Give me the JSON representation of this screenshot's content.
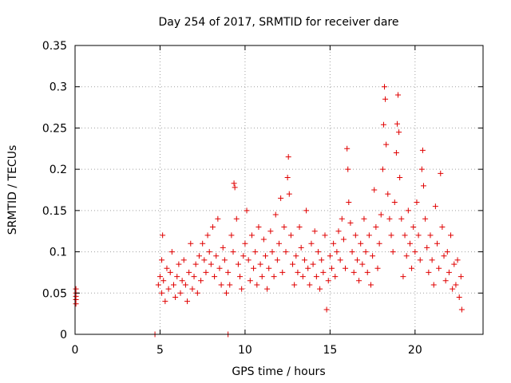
{
  "chart_data": {
    "type": "scatter",
    "title": "Day 254 of 2017, SRMTID for receiver dare",
    "xlabel": "GPS time / hours",
    "ylabel": "SRMTID / TECUs",
    "xlim": [
      0,
      24
    ],
    "ylim": [
      0,
      0.35
    ],
    "x_ticks": [
      0,
      5,
      10,
      15,
      20
    ],
    "x_tick_labels": [
      "0",
      "5",
      "10",
      "15",
      "20"
    ],
    "y_ticks": [
      0,
      0.05,
      0.1,
      0.15,
      0.2,
      0.25,
      0.3,
      0.35
    ],
    "y_tick_labels": [
      "0",
      "0.05",
      "0.1",
      "0.15",
      "0.2",
      "0.25",
      "0.3",
      "0.35"
    ],
    "grid": true,
    "marker": "+",
    "colors": {
      "series": "#e00000",
      "grid": "#a0a0a0",
      "axis": "#000000"
    },
    "series": [
      {
        "name": "SRMTID",
        "points": [
          [
            0.05,
            0.037
          ],
          [
            0.05,
            0.042
          ],
          [
            0.05,
            0.046
          ],
          [
            0.05,
            0.05
          ],
          [
            0.05,
            0.055
          ],
          [
            4.7,
            0.0
          ],
          [
            9.0,
            0.0
          ],
          [
            4.9,
            0.06
          ],
          [
            5.0,
            0.07
          ],
          [
            5.1,
            0.05
          ],
          [
            5.1,
            0.09
          ],
          [
            5.15,
            0.12
          ],
          [
            5.2,
            0.065
          ],
          [
            5.3,
            0.04
          ],
          [
            5.4,
            0.08
          ],
          [
            5.5,
            0.055
          ],
          [
            5.6,
            0.075
          ],
          [
            5.7,
            0.1
          ],
          [
            5.8,
            0.06
          ],
          [
            5.9,
            0.045
          ],
          [
            6.0,
            0.07
          ],
          [
            6.1,
            0.085
          ],
          [
            6.2,
            0.05
          ],
          [
            6.3,
            0.065
          ],
          [
            6.4,
            0.09
          ],
          [
            6.5,
            0.06
          ],
          [
            6.6,
            0.04
          ],
          [
            6.7,
            0.075
          ],
          [
            6.8,
            0.11
          ],
          [
            6.9,
            0.055
          ],
          [
            7.0,
            0.07
          ],
          [
            7.1,
            0.085
          ],
          [
            7.2,
            0.05
          ],
          [
            7.3,
            0.095
          ],
          [
            7.4,
            0.065
          ],
          [
            7.5,
            0.11
          ],
          [
            7.6,
            0.09
          ],
          [
            7.7,
            0.075
          ],
          [
            7.8,
            0.12
          ],
          [
            7.9,
            0.1
          ],
          [
            8.0,
            0.085
          ],
          [
            8.1,
            0.13
          ],
          [
            8.2,
            0.07
          ],
          [
            8.3,
            0.095
          ],
          [
            8.4,
            0.14
          ],
          [
            8.5,
            0.08
          ],
          [
            8.6,
            0.06
          ],
          [
            8.7,
            0.105
          ],
          [
            8.8,
            0.09
          ],
          [
            8.9,
            0.05
          ],
          [
            9.0,
            0.075
          ],
          [
            9.1,
            0.06
          ],
          [
            9.2,
            0.12
          ],
          [
            9.3,
            0.1
          ],
          [
            9.35,
            0.183
          ],
          [
            9.4,
            0.178
          ],
          [
            9.5,
            0.14
          ],
          [
            9.6,
            0.085
          ],
          [
            9.7,
            0.07
          ],
          [
            9.8,
            0.055
          ],
          [
            9.9,
            0.095
          ],
          [
            10.0,
            0.11
          ],
          [
            10.1,
            0.15
          ],
          [
            10.2,
            0.09
          ],
          [
            10.3,
            0.065
          ],
          [
            10.4,
            0.12
          ],
          [
            10.5,
            0.08
          ],
          [
            10.6,
            0.1
          ],
          [
            10.7,
            0.06
          ],
          [
            10.8,
            0.13
          ],
          [
            10.9,
            0.085
          ],
          [
            11.0,
            0.07
          ],
          [
            11.1,
            0.115
          ],
          [
            11.2,
            0.095
          ],
          [
            11.3,
            0.055
          ],
          [
            11.4,
            0.08
          ],
          [
            11.5,
            0.125
          ],
          [
            11.6,
            0.1
          ],
          [
            11.7,
            0.07
          ],
          [
            11.8,
            0.145
          ],
          [
            11.9,
            0.09
          ],
          [
            12.0,
            0.11
          ],
          [
            12.1,
            0.165
          ],
          [
            12.2,
            0.075
          ],
          [
            12.3,
            0.13
          ],
          [
            12.4,
            0.1
          ],
          [
            12.5,
            0.19
          ],
          [
            12.55,
            0.215
          ],
          [
            12.6,
            0.17
          ],
          [
            12.7,
            0.12
          ],
          [
            12.8,
            0.085
          ],
          [
            12.9,
            0.06
          ],
          [
            13.0,
            0.095
          ],
          [
            13.1,
            0.075
          ],
          [
            13.2,
            0.13
          ],
          [
            13.3,
            0.105
          ],
          [
            13.4,
            0.07
          ],
          [
            13.5,
            0.09
          ],
          [
            13.6,
            0.15
          ],
          [
            13.7,
            0.08
          ],
          [
            13.8,
            0.06
          ],
          [
            13.9,
            0.11
          ],
          [
            14.0,
            0.085
          ],
          [
            14.1,
            0.125
          ],
          [
            14.2,
            0.07
          ],
          [
            14.3,
            0.1
          ],
          [
            14.4,
            0.055
          ],
          [
            14.5,
            0.09
          ],
          [
            14.6,
            0.075
          ],
          [
            14.7,
            0.12
          ],
          [
            14.8,
            0.03
          ],
          [
            14.9,
            0.065
          ],
          [
            15.0,
            0.095
          ],
          [
            15.1,
            0.08
          ],
          [
            15.2,
            0.11
          ],
          [
            15.3,
            0.07
          ],
          [
            15.4,
            0.1
          ],
          [
            15.5,
            0.125
          ],
          [
            15.6,
            0.09
          ],
          [
            15.7,
            0.14
          ],
          [
            15.8,
            0.115
          ],
          [
            15.9,
            0.08
          ],
          [
            16.0,
            0.225
          ],
          [
            16.05,
            0.2
          ],
          [
            16.1,
            0.16
          ],
          [
            16.2,
            0.135
          ],
          [
            16.3,
            0.1
          ],
          [
            16.4,
            0.075
          ],
          [
            16.5,
            0.12
          ],
          [
            16.6,
            0.09
          ],
          [
            16.7,
            0.065
          ],
          [
            16.8,
            0.11
          ],
          [
            16.9,
            0.085
          ],
          [
            17.0,
            0.14
          ],
          [
            17.1,
            0.1
          ],
          [
            17.2,
            0.075
          ],
          [
            17.3,
            0.12
          ],
          [
            17.4,
            0.06
          ],
          [
            17.5,
            0.095
          ],
          [
            17.6,
            0.175
          ],
          [
            17.7,
            0.13
          ],
          [
            17.8,
            0.08
          ],
          [
            17.9,
            0.11
          ],
          [
            18.0,
            0.145
          ],
          [
            18.1,
            0.2
          ],
          [
            18.15,
            0.254
          ],
          [
            18.2,
            0.3
          ],
          [
            18.25,
            0.285
          ],
          [
            18.3,
            0.23
          ],
          [
            18.4,
            0.17
          ],
          [
            18.5,
            0.14
          ],
          [
            18.6,
            0.12
          ],
          [
            18.7,
            0.1
          ],
          [
            18.8,
            0.16
          ],
          [
            18.9,
            0.22
          ],
          [
            18.95,
            0.255
          ],
          [
            19.0,
            0.29
          ],
          [
            19.05,
            0.245
          ],
          [
            19.1,
            0.19
          ],
          [
            19.2,
            0.14
          ],
          [
            19.3,
            0.07
          ],
          [
            19.4,
            0.12
          ],
          [
            19.5,
            0.095
          ],
          [
            19.6,
            0.15
          ],
          [
            19.7,
            0.11
          ],
          [
            19.8,
            0.08
          ],
          [
            19.9,
            0.13
          ],
          [
            20.0,
            0.1
          ],
          [
            20.1,
            0.16
          ],
          [
            20.2,
            0.12
          ],
          [
            20.3,
            0.09
          ],
          [
            20.4,
            0.2
          ],
          [
            20.45,
            0.223
          ],
          [
            20.5,
            0.18
          ],
          [
            20.6,
            0.14
          ],
          [
            20.7,
            0.105
          ],
          [
            20.8,
            0.075
          ],
          [
            20.9,
            0.12
          ],
          [
            21.0,
            0.09
          ],
          [
            21.1,
            0.06
          ],
          [
            21.2,
            0.155
          ],
          [
            21.3,
            0.11
          ],
          [
            21.4,
            0.08
          ],
          [
            21.5,
            0.195
          ],
          [
            21.6,
            0.13
          ],
          [
            21.7,
            0.095
          ],
          [
            21.8,
            0.065
          ],
          [
            21.9,
            0.1
          ],
          [
            22.0,
            0.075
          ],
          [
            22.1,
            0.12
          ],
          [
            22.2,
            0.055
          ],
          [
            22.3,
            0.085
          ],
          [
            22.4,
            0.06
          ],
          [
            22.5,
            0.09
          ],
          [
            22.6,
            0.045
          ],
          [
            22.7,
            0.07
          ],
          [
            22.75,
            0.03
          ]
        ]
      }
    ]
  }
}
